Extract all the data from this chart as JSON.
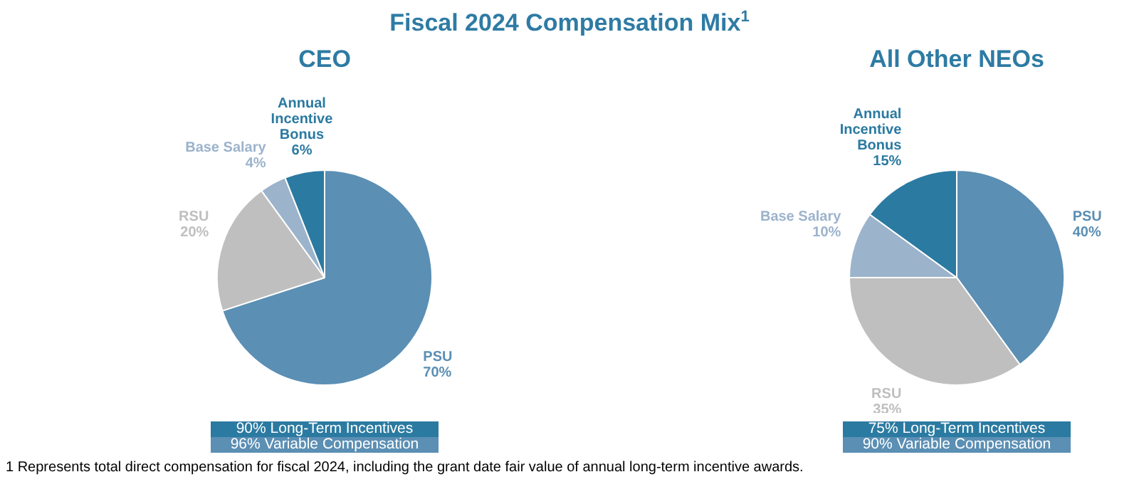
{
  "chart_data": [
    {
      "type": "other",
      "title": "Fiscal 2024 Compensation Mix$^{1}$",
      "annotations": [
        "1 Represents total direct compensation for fiscal 2024, including the grant date fair value of annual long-term incentive awards."
      ]
    },
    {
      "type": "pie",
      "title": "CEO",
      "categories": [
        "PSU",
        "RSU",
        "Base Salary",
        "Annual Incentive Bonus"
      ],
      "values": [
        70,
        20,
        4,
        6
      ],
      "colors": [
        "#5b8fb4",
        "#bfbfbf",
        "#9cb3cc",
        "#2b7aa1"
      ],
      "value_labels": [
        "70%",
        "20%",
        "4%",
        "6%"
      ],
      "annotations": [
        "90% Long-Term Incentives",
        "96% Variable Compensation"
      ]
    },
    {
      "type": "pie",
      "title": "All Other NEOs",
      "categories": [
        "PSU",
        "RSU",
        "Base Salary",
        "Annual Incentive Bonus"
      ],
      "values": [
        40,
        35,
        10,
        15
      ],
      "colors": [
        "#5b8fb4",
        "#bfbfbf",
        "#9cb3cc",
        "#2b7aa1"
      ],
      "value_labels": [
        "40%",
        "35%",
        "10%",
        "15%"
      ],
      "annotations": [
        "75% Long-Term Incentives",
        "90% Variable Compensation"
      ]
    }
  ]
}
